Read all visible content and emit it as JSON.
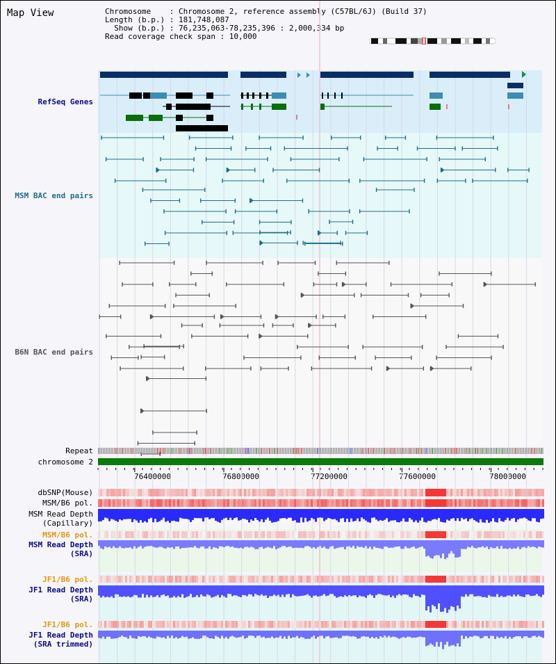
{
  "header": {
    "title": "Map View",
    "info_lines": [
      "Chromosome    : Chromosome 2, reference assembly (C57BL/6J) (Build 37)",
      "Length (b.p.) : 181,748,087",
      "  Show (b.p.) : 76,235,063-78,235,396 : 2,000,334 bp",
      "Read coverage check span : 10,000"
    ]
  },
  "tracks": {
    "refseq": "RefSeq Genes",
    "msm_bac": "MSM BAC end pairs",
    "b6n_bac": "B6N BAC end pairs",
    "repeat": "Repeat",
    "chromosome": "chromosome 2",
    "dbsnp": "dbSNP(Mouse)",
    "msm_b6_pol": "MSM/B6 pol.",
    "msm_depth_cap_1": "MSM Read Depth",
    "msm_depth_cap_2": "(Capillary)",
    "msm_b6_pol_2": "MSM/B6 pol.",
    "msm_depth_sra_1": "MSM Read Depth",
    "msm_depth_sra_2": "(SRA)",
    "jf1_b6_pol": "JF1/B6 pol.",
    "jf1_depth_sra_1": "JF1 Read Depth",
    "jf1_depth_sra_2": "(SRA)",
    "jf1_b6_pol_2": "JF1/B6 pol.",
    "jf1_depth_trim_1": "JF1 Read Depth",
    "jf1_depth_trim_2": "(SRA trimmed)"
  },
  "axis": {
    "ticks": [
      "76400000",
      "76800000",
      "77200000",
      "77600000",
      "78000000"
    ],
    "tick_values": [
      76400000,
      76800000,
      77200000,
      77600000,
      78000000
    ],
    "range": [
      76235063,
      78235396
    ]
  },
  "colors": {
    "refseq_dark": "#0a2d66",
    "refseq_mid": "#3c8db4",
    "refseq_green": "#0a6e0a",
    "msm": "#1f6e8c",
    "b6n": "#555555",
    "chromosome": "#0b7a0b",
    "depth_blue": "#2a2aff"
  }
}
